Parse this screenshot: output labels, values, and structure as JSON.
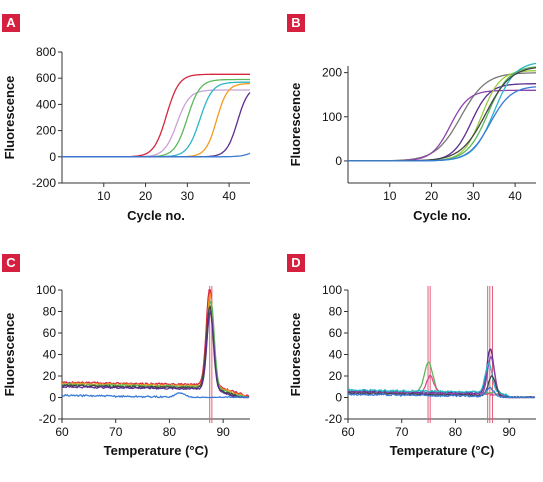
{
  "colors": {
    "badge": "#d6203f",
    "axis": "#333333",
    "guide_line": "#e0607a",
    "red": "#d7263d",
    "pink": "#e04a8c",
    "lavender": "#c8a2d8",
    "green": "#5cb85c",
    "lime": "#9ccc3c",
    "cyan": "#2ab7c9",
    "orange": "#f39a1e",
    "purple": "#5b2d90",
    "violet": "#8e44ad",
    "blue": "#3a7bd5",
    "gray": "#777777",
    "darkgray": "#444444"
  },
  "chart_data": [
    {
      "panel": "A",
      "type": "line",
      "ylabel": "Fluorescence",
      "xlabel": "Cycle no.",
      "xlim": [
        0,
        45
      ],
      "ylim": [
        -200,
        800
      ],
      "xticks": [
        10,
        20,
        30,
        40
      ],
      "yticks": [
        -200,
        0,
        200,
        400,
        600,
        800
      ],
      "series": [
        {
          "color": "red",
          "values": {
            "plateau": 630,
            "midpoint": 25,
            "slope": 1.5
          }
        },
        {
          "color": "lavender",
          "values": {
            "plateau": 510,
            "midpoint": 27.5,
            "slope": 1.5
          }
        },
        {
          "color": "green",
          "values": {
            "plateau": 590,
            "midpoint": 30,
            "slope": 1.5
          }
        },
        {
          "color": "cyan",
          "values": {
            "plateau": 570,
            "midpoint": 33,
            "slope": 1.5
          }
        },
        {
          "color": "orange",
          "values": {
            "plateau": 560,
            "midpoint": 37,
            "slope": 1.3
          }
        },
        {
          "color": "purple",
          "values": {
            "plateau": 540,
            "midpoint": 42,
            "slope": 1.3
          }
        },
        {
          "color": "blue",
          "values": {
            "plateau": 130,
            "midpoint": 47,
            "slope": 1.5
          }
        }
      ]
    },
    {
      "panel": "B",
      "type": "line",
      "ylabel": "Fluorescence",
      "xlabel": "Cycle no.",
      "xlim": [
        0,
        45
      ],
      "ylim": [
        -50,
        215
      ],
      "xticks": [
        10,
        20,
        30,
        40
      ],
      "yticks": [
        0,
        100,
        200
      ],
      "series": [
        {
          "color": "gray",
          "values": {
            "plateau": 200,
            "midpoint": 27,
            "slope": 3
          }
        },
        {
          "color": "violet",
          "values": {
            "plateau": 160,
            "midpoint": 24.5,
            "slope": 2.2
          }
        },
        {
          "color": "purple",
          "values": {
            "plateau": 175,
            "midpoint": 29.5,
            "slope": 2.2
          }
        },
        {
          "color": "lime",
          "values": {
            "plateau": 205,
            "midpoint": 32,
            "slope": 2.2
          }
        },
        {
          "color": "green",
          "values": {
            "plateau": 215,
            "midpoint": 33.5,
            "slope": 2.5
          }
        },
        {
          "color": "cyan",
          "values": {
            "plateau": 225,
            "midpoint": 35,
            "slope": 2.5
          }
        },
        {
          "color": "darkgray",
          "values": {
            "plateau": 215,
            "midpoint": 33,
            "slope": 3
          }
        },
        {
          "color": "blue",
          "values": {
            "plateau": 170,
            "midpoint": 34,
            "slope": 2.5
          }
        }
      ]
    },
    {
      "panel": "C",
      "type": "line",
      "ylabel": "Fluorescence",
      "xlabel": "Temperature (°C)",
      "xlim": [
        60,
        95
      ],
      "ylim": [
        -20,
        100
      ],
      "xticks": [
        60,
        70,
        80,
        90
      ],
      "yticks": [
        -20,
        0,
        20,
        40,
        60,
        80,
        100
      ],
      "vlines": [
        87.5,
        87.9
      ],
      "series": [
        {
          "color": "red",
          "values": {
            "base": 14,
            "peak_x": 87.5,
            "peak_y": 90,
            "width": 0.9
          }
        },
        {
          "color": "orange",
          "values": {
            "base": 13,
            "peak_x": 87.6,
            "peak_y": 85,
            "width": 0.9
          }
        },
        {
          "color": "green",
          "values": {
            "base": 12,
            "peak_x": 87.7,
            "peak_y": 80,
            "width": 0.9
          }
        },
        {
          "color": "darkgray",
          "values": {
            "base": 11,
            "peak_x": 87.5,
            "peak_y": 76,
            "width": 0.9
          }
        },
        {
          "color": "purple",
          "values": {
            "base": 10,
            "peak_x": 87.6,
            "peak_y": 72,
            "width": 0.9
          }
        },
        {
          "color": "blue",
          "values": {
            "base": 2,
            "peak_x": 82,
            "peak_y": 4,
            "width": 1.2
          }
        }
      ]
    },
    {
      "panel": "D",
      "type": "line",
      "ylabel": "Fluorescence",
      "xlabel": "Temperature (°C)",
      "xlim": [
        60,
        95
      ],
      "ylim": [
        -20,
        100
      ],
      "xticks": [
        60,
        70,
        80,
        90
      ],
      "yticks": [
        -20,
        0,
        20,
        40,
        60,
        80,
        100
      ],
      "vlines": [
        74.9,
        75.3,
        86.0,
        86.4,
        86.9
      ],
      "series": [
        {
          "color": "green",
          "values": {
            "base": 6,
            "peak_x": 75.0,
            "peak_y": 28,
            "width": 1.1
          }
        },
        {
          "color": "pink",
          "values": {
            "base": 5,
            "peak_x": 75.3,
            "peak_y": 16,
            "width": 1.0
          }
        },
        {
          "color": "purple",
          "values": {
            "base": 6,
            "peak_x": 86.5,
            "peak_y": 42,
            "width": 0.9
          }
        },
        {
          "color": "violet",
          "values": {
            "base": 5,
            "peak_x": 86.6,
            "peak_y": 35,
            "width": 0.9
          }
        },
        {
          "color": "cyan",
          "values": {
            "base": 7,
            "peak_x": 86.2,
            "peak_y": 27,
            "width": 0.9
          }
        },
        {
          "color": "darkgray",
          "values": {
            "base": 4,
            "peak_x": 86.8,
            "peak_y": 18,
            "width": 0.9
          }
        },
        {
          "color": "blue",
          "values": {
            "base": 3,
            "peak_x": 86.4,
            "peak_y": 8,
            "width": 1.0
          }
        }
      ]
    }
  ]
}
